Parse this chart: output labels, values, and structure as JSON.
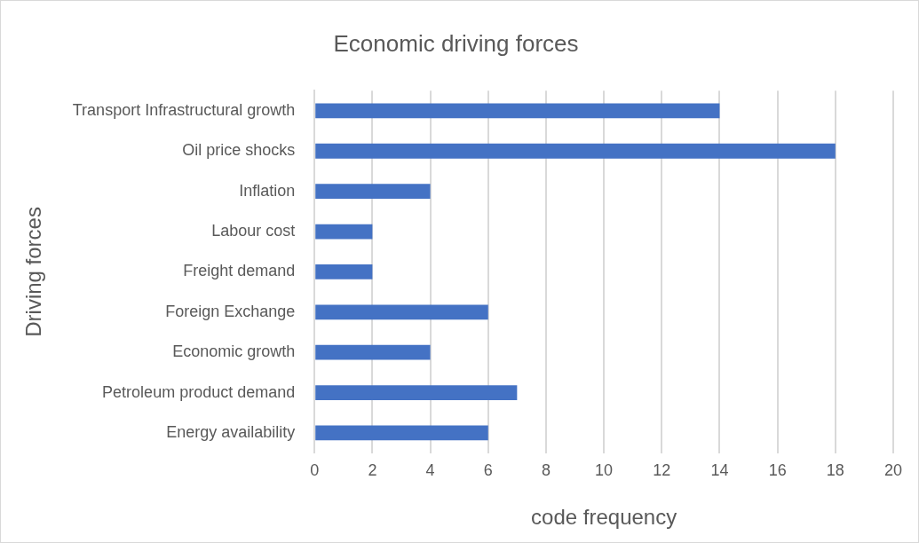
{
  "chart_data": {
    "type": "bar",
    "orientation": "horizontal",
    "title": "Economic driving forces",
    "xlabel": "code frequency",
    "ylabel": "Driving forces",
    "categories": [
      "Transport Infrastructural growth",
      "Oil price shocks",
      "Inflation",
      "Labour cost",
      "Freight demand",
      "Foreign Exchange",
      "Economic growth",
      "Petroleum product demand",
      "Energy availability"
    ],
    "values": [
      14,
      18,
      4,
      2,
      2,
      6,
      4,
      7,
      6
    ],
    "color": "#4472c4",
    "xlim": [
      0,
      20
    ],
    "xticks": [
      0,
      2,
      4,
      6,
      8,
      10,
      12,
      14,
      16,
      18,
      20
    ],
    "grid": "x",
    "legend": false
  }
}
